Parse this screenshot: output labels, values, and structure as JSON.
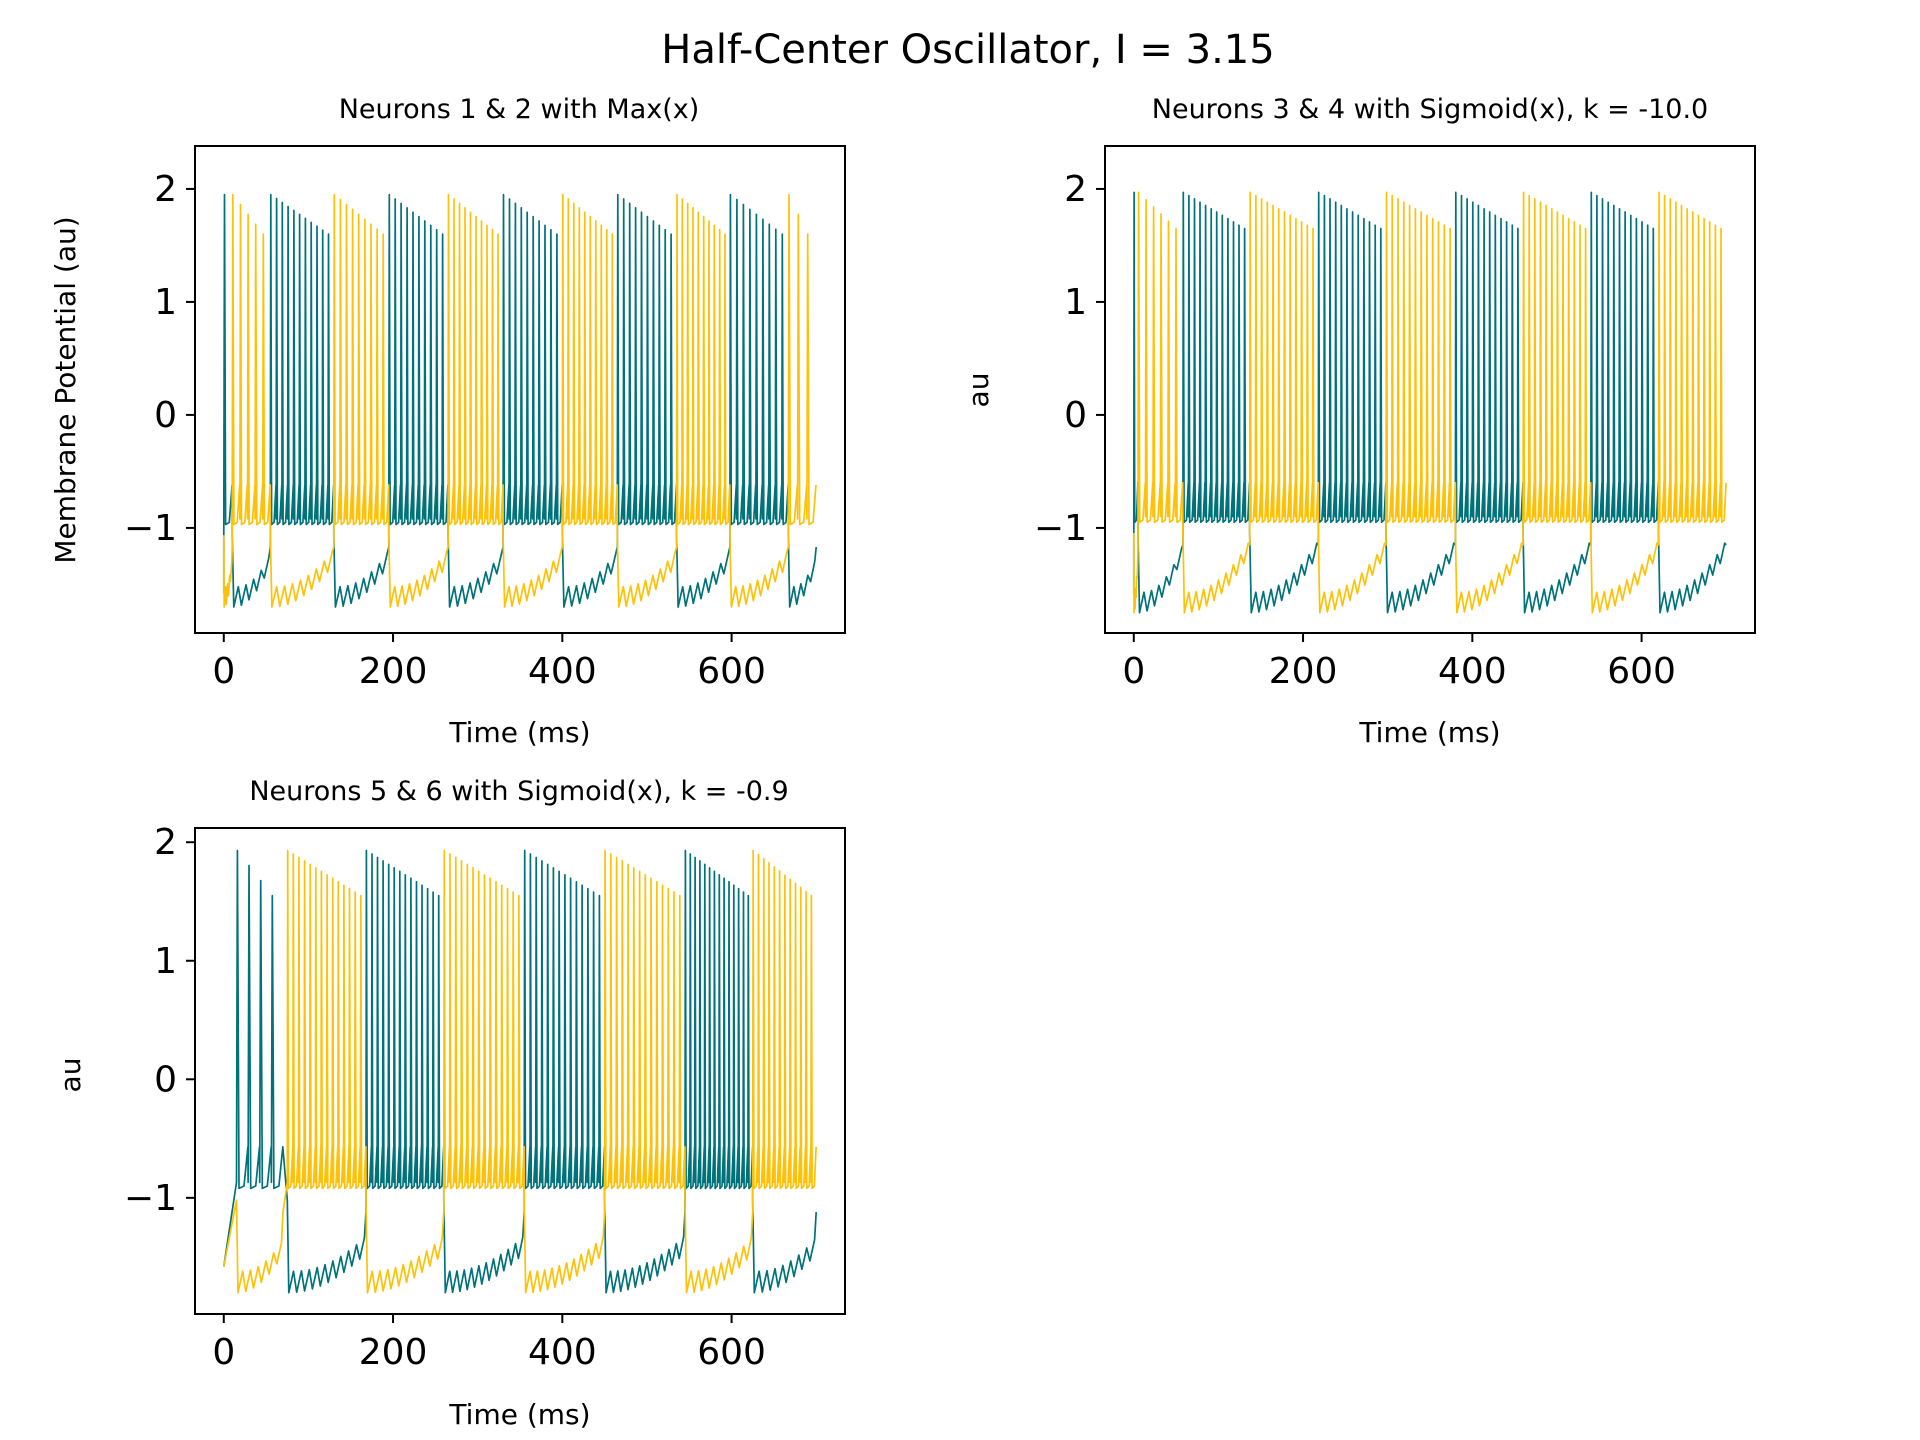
{
  "chart_data": {
    "title": "Half-Center Oscillator, I = 3.15",
    "series_colors": [
      "#00727a",
      "#ffc107"
    ],
    "panels": [
      {
        "type": "line",
        "title": "Neurons 1 & 2 with Max(x)",
        "xlabel": "Time (ms)",
        "ylabel": "Membrane Potential (au)",
        "xlim": [
          -34,
          734
        ],
        "ylim": [
          -1.93,
          2.38
        ],
        "xticks": [
          0,
          200,
          400,
          600
        ],
        "xtick_labels": [
          "0",
          "200",
          "400",
          "600"
        ],
        "yticks": [
          -1,
          0,
          1,
          2
        ],
        "ytick_labels": [
          "−1",
          "0",
          "1",
          "2"
        ],
        "duration": 700,
        "bursts": {
          "teal": [
            [
              0,
              10
            ],
            [
              55,
              130
            ],
            [
              195,
              265
            ],
            [
              330,
              400
            ],
            [
              465,
              535
            ],
            [
              598,
              667
            ]
          ],
          "gold": [
            [
              10,
              55
            ],
            [
              130,
              195
            ],
            [
              265,
              330
            ],
            [
              400,
              465
            ],
            [
              535,
              598
            ],
            [
              667,
              700
            ]
          ]
        },
        "spike_counts": {
          "teal": [
            1,
            11,
            10,
            10,
            10,
            9
          ],
          "gold": [
            5,
            9,
            10,
            10,
            10,
            3
          ]
        },
        "peak_range": [
          1.95,
          1.6
        ],
        "trough": -0.97,
        "suppressed_range": [
          -1.7,
          -1.3
        ],
        "start_value": -1.58
      },
      {
        "type": "line",
        "title": "Neurons 3 & 4 with Sigmoid(x), k = -10.0",
        "xlabel": "Time (ms)",
        "ylabel": "au",
        "xlim": [
          -34,
          734
        ],
        "ylim": [
          -1.93,
          2.38
        ],
        "xticks": [
          0,
          200,
          400,
          600
        ],
        "xtick_labels": [
          "0",
          "200",
          "400",
          "600"
        ],
        "yticks": [
          -1,
          0,
          1,
          2
        ],
        "ytick_labels": [
          "−1",
          "0",
          "1",
          "2"
        ],
        "duration": 700,
        "bursts": {
          "teal": [
            [
              0,
              5
            ],
            [
              58,
              137
            ],
            [
              218,
              298
            ],
            [
              380,
              460
            ],
            [
              540,
              620
            ]
          ],
          "gold": [
            [
              5,
              58
            ],
            [
              137,
              218
            ],
            [
              298,
              380
            ],
            [
              460,
              540
            ],
            [
              620,
              700
            ]
          ]
        },
        "spike_counts": {
          "teal": [
            1,
            12,
            12,
            12,
            12
          ],
          "gold": [
            6,
            12,
            12,
            12,
            12
          ]
        },
        "peak_range": [
          1.97,
          1.65
        ],
        "trough": -0.95,
        "suppressed_range": [
          -1.75,
          -1.2
        ],
        "start_value": -1.58
      },
      {
        "type": "line",
        "title": "Neurons 5 & 6 with Sigmoid(x), k = -0.9",
        "xlabel": "Time (ms)",
        "ylabel": "au",
        "xlim": [
          -34,
          734
        ],
        "ylim": [
          -1.98,
          2.12
        ],
        "xticks": [
          0,
          200,
          400,
          600
        ],
        "xtick_labels": [
          "0",
          "200",
          "400",
          "600"
        ],
        "yticks": [
          -1,
          0,
          1,
          2
        ],
        "ytick_labels": [
          "−1",
          "0",
          "1",
          "2"
        ],
        "duration": 700,
        "bursts": {
          "teal": [
            [
              15,
              70
            ],
            [
              168,
              260
            ],
            [
              355,
              450
            ],
            [
              545,
              625
            ]
          ],
          "gold": [
            [
              75,
              168
            ],
            [
              260,
              355
            ],
            [
              450,
              545
            ],
            [
              625,
              700
            ]
          ]
        },
        "spike_counts": {
          "teal": [
            4,
            14,
            14,
            14
          ],
          "gold": [
            14,
            14,
            14,
            12
          ]
        },
        "peak_range": [
          1.93,
          1.55
        ],
        "trough": -0.92,
        "suppressed_range": [
          -1.8,
          -1.45
        ],
        "start_value": -1.58
      }
    ]
  }
}
